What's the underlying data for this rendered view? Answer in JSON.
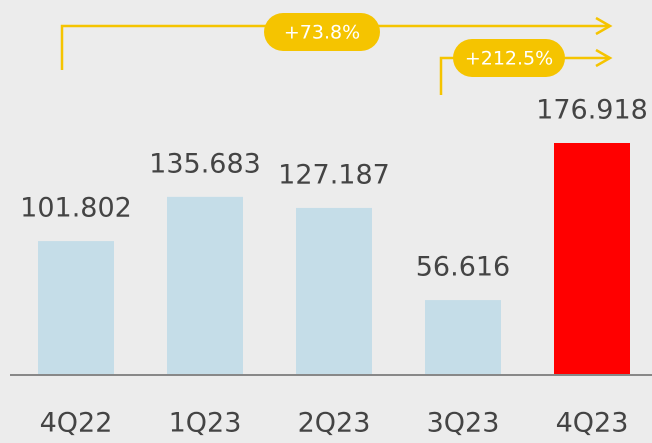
{
  "chart_data": {
    "type": "bar",
    "categories": [
      "4Q22",
      "1Q23",
      "2Q23",
      "3Q23",
      "4Q23"
    ],
    "values": [
      101.802,
      135.683,
      127.187,
      56.616,
      176.918
    ],
    "colors": [
      "#c5dde8",
      "#c5dde8",
      "#c5dde8",
      "#c5dde8",
      "#ff0000"
    ],
    "annotations": [
      "+73.8%",
      "+212.5%"
    ]
  }
}
